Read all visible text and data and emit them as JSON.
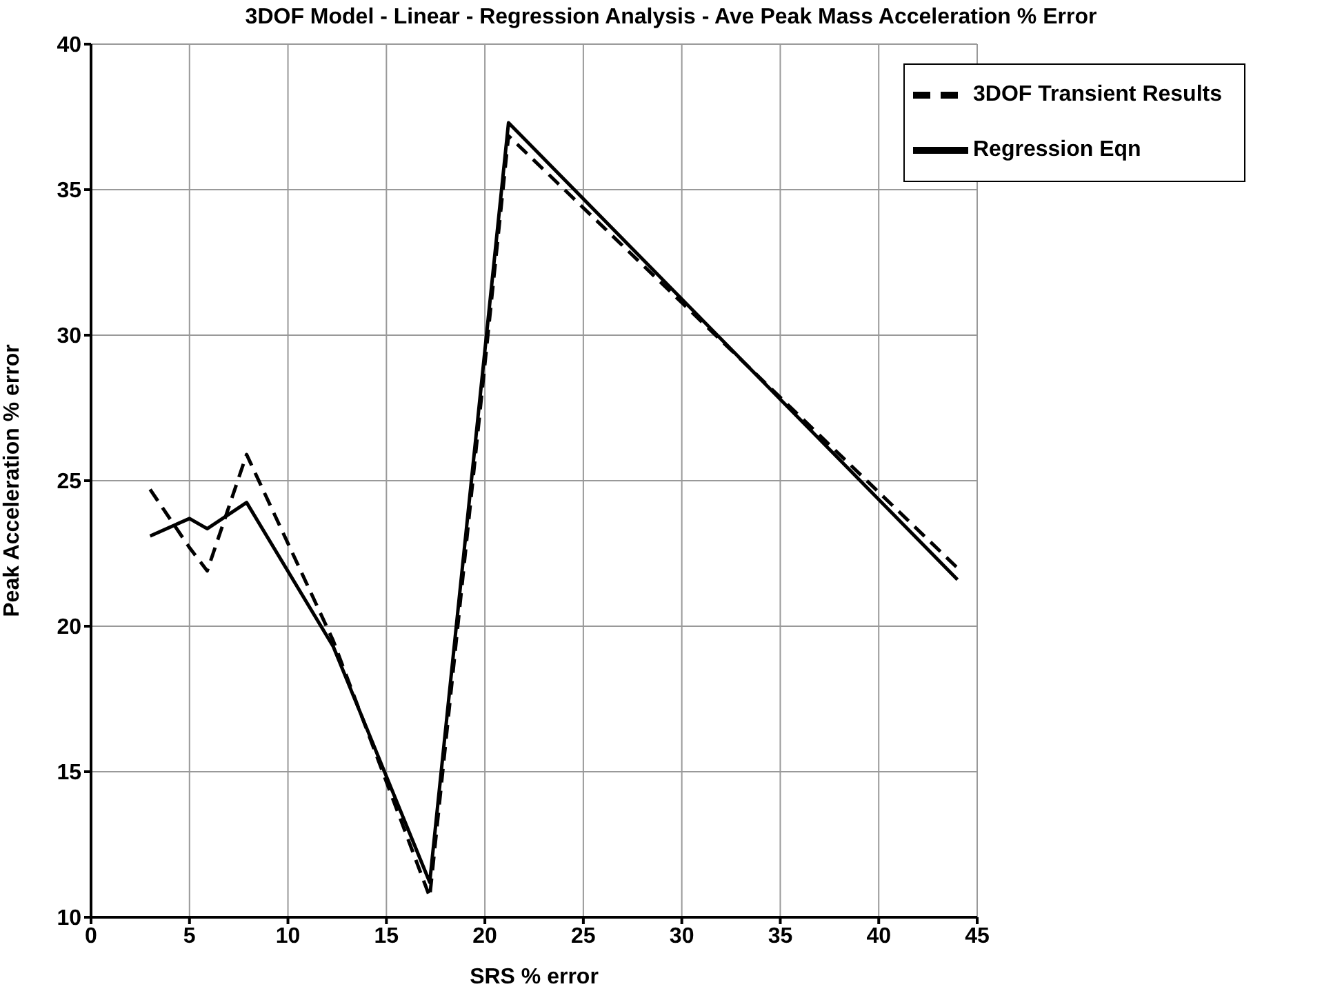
{
  "chart_data": {
    "type": "line",
    "title": "3DOF Model - Linear - Regression Analysis - Ave Peak Mass Acceleration % Error",
    "xlabel": "SRS % error",
    "ylabel": "Peak Acceleration % error",
    "x": [
      3,
      5,
      5.9,
      7.9,
      12.3,
      17.2,
      21.2,
      44
    ],
    "series": [
      {
        "name": "Regression Eqn",
        "color": "#000000",
        "line_style": "solid",
        "values": [
          23.1,
          23.7,
          23.35,
          24.25,
          19.3,
          11.2,
          37.3,
          21.6
        ]
      },
      {
        "name": "3DOF Transient Results",
        "color": "#000000",
        "line_style": "dashed",
        "values": [
          24.7,
          22.7,
          21.9,
          25.9,
          19.5,
          10.7,
          36.85,
          22.0
        ]
      }
    ],
    "xlim": [
      0,
      45
    ],
    "xticks": [
      0,
      5,
      10,
      15,
      20,
      25,
      30,
      35,
      40,
      45
    ],
    "ylim": [
      10,
      40
    ],
    "yticks": [
      10,
      15,
      20,
      25,
      30,
      35,
      40
    ],
    "grid": true,
    "legend": "top right",
    "marker": "none"
  }
}
